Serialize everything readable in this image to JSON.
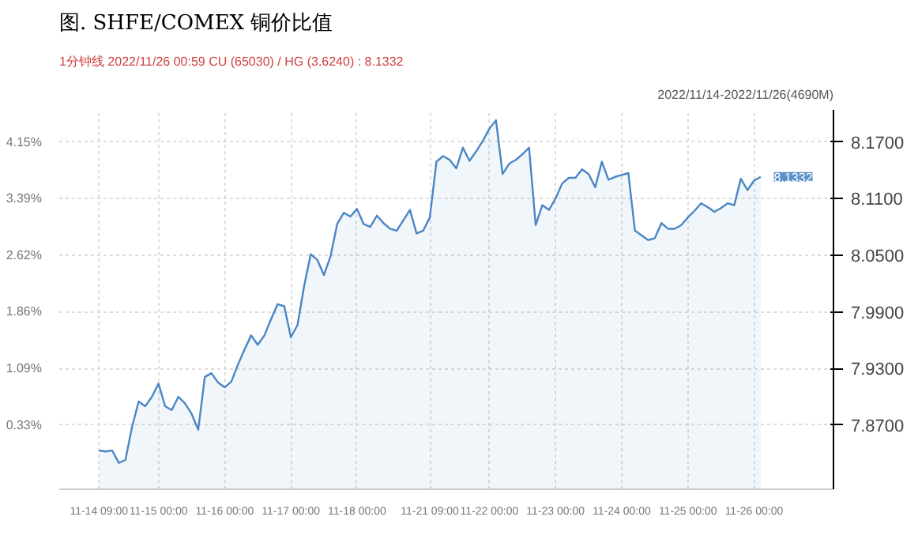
{
  "chart_data": {
    "type": "area",
    "title": "图. SHFE/COMEX 铜价比值",
    "annotations": [
      "1分钟线 2022/11/26 00:59 CU (65030) / HG (3.6240) : 8.1332",
      "2022/11/14-2022/11/26(4690M)",
      "8.1332"
    ],
    "categories": [
      "11-14 09:00",
      null,
      null,
      null,
      null,
      null,
      null,
      null,
      null,
      "11-15 00:00",
      null,
      null,
      null,
      null,
      null,
      null,
      null,
      null,
      null,
      "11-16 00:00",
      null,
      null,
      null,
      null,
      null,
      null,
      null,
      null,
      null,
      "11-17 00:00",
      null,
      null,
      null,
      null,
      null,
      null,
      null,
      null,
      null,
      "11-18 00:00",
      null,
      null,
      null,
      null,
      null,
      null,
      null,
      null,
      null,
      null,
      "11-21 09:00",
      null,
      null,
      null,
      null,
      null,
      null,
      null,
      null,
      "11-22 00:00",
      null,
      null,
      null,
      null,
      null,
      null,
      null,
      null,
      null,
      "11-23 00:00",
      null,
      null,
      null,
      null,
      null,
      null,
      null,
      null,
      null,
      "11-24 00:00",
      null,
      null,
      null,
      null,
      null,
      null,
      null,
      null,
      null,
      "11-25 00:00",
      null,
      null,
      null,
      null,
      null,
      null,
      null,
      null,
      null,
      "11-26 00:00",
      null
    ],
    "series": [
      {
        "color": "#4a86c5",
        "values": [
          7.843,
          7.842,
          7.843,
          7.83,
          7.833,
          7.868,
          7.895,
          7.89,
          7.9,
          7.914,
          7.89,
          7.886,
          7.9,
          7.893,
          7.882,
          7.865,
          7.921,
          7.925,
          7.915,
          7.91,
          7.916,
          7.934,
          7.95,
          7.965,
          7.955,
          7.965,
          7.982,
          7.998,
          7.996,
          7.963,
          7.976,
          8.017,
          8.051,
          8.045,
          8.029,
          8.049,
          8.083,
          8.095,
          8.091,
          8.099,
          8.083,
          8.08,
          8.092,
          8.084,
          8.078,
          8.076,
          8.087,
          8.098,
          8.073,
          8.076,
          8.09,
          8.149,
          8.155,
          8.151,
          8.142,
          8.164,
          8.15,
          8.16,
          8.171,
          8.184,
          8.193,
          8.136,
          8.147,
          8.151,
          8.157,
          8.164,
          8.082,
          8.103,
          8.098,
          8.11,
          8.126,
          8.132,
          8.132,
          8.141,
          8.136,
          8.122,
          8.149,
          8.13,
          8.133,
          8.135,
          8.137,
          8.076,
          8.071,
          8.066,
          8.068,
          8.084,
          8.078,
          8.078,
          8.082,
          8.09,
          8.097,
          8.105,
          8.101,
          8.096,
          8.1,
          8.105,
          8.103,
          8.131,
          8.119,
          8.129,
          8.133
        ]
      }
    ],
    "y2lim": [
      -0.54,
      4.59
    ],
    "y2ticks": [
      {
        "value": 0.33,
        "label": "0.33%"
      },
      {
        "value": 1.09,
        "label": "1.09%"
      },
      {
        "value": 1.86,
        "label": "1.86%"
      },
      {
        "value": 2.62,
        "label": "2.62%"
      },
      {
        "value": 3.39,
        "label": "3.39%"
      },
      {
        "value": 4.15,
        "label": "4.15%"
      }
    ],
    "ylim": [
      7.802,
      8.204
    ],
    "yticks": [
      {
        "value": 7.87,
        "label": "7.8700"
      },
      {
        "value": 7.93,
        "label": "7.9300"
      },
      {
        "value": 7.99,
        "label": "7.9900"
      },
      {
        "value": 8.05,
        "label": "8.0500"
      },
      {
        "value": 8.11,
        "label": "8.1100"
      },
      {
        "value": 8.17,
        "label": "8.1700"
      }
    ],
    "grid": true
  }
}
